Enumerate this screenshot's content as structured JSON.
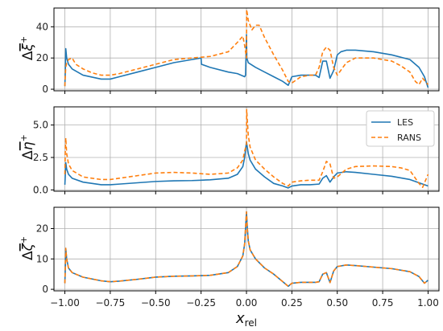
{
  "chart_data": [
    {
      "type": "line",
      "ylabel": "Δξ̅⁺",
      "xlim": [
        -1.06,
        1.06
      ],
      "ylim": [
        -1,
        52
      ],
      "yticks": [
        0,
        20,
        40
      ],
      "grid": true,
      "series": [
        {
          "name": "LES",
          "color": "#1f77b4",
          "dash": "solid",
          "x": [
            -1.0,
            -0.998,
            -0.995,
            -0.99,
            -0.98,
            -0.96,
            -0.9,
            -0.8,
            -0.75,
            -0.7,
            -0.6,
            -0.5,
            -0.4,
            -0.3,
            -0.25,
            -0.248,
            -0.2,
            -0.1,
            -0.05,
            -0.01,
            -0.005,
            0.0,
            0.002,
            0.01,
            0.05,
            0.1,
            0.15,
            0.2,
            0.23,
            0.25,
            0.3,
            0.35,
            0.38,
            0.4,
            0.42,
            0.44,
            0.46,
            0.48,
            0.5,
            0.52,
            0.55,
            0.6,
            0.7,
            0.8,
            0.9,
            0.95,
            0.98,
            1.0
          ],
          "y": [
            2,
            10,
            26,
            20,
            16,
            13,
            9,
            6.5,
            6.5,
            8,
            11,
            14,
            17,
            19,
            20,
            16,
            14,
            11,
            10,
            8,
            9,
            35,
            20,
            17,
            14,
            11,
            8,
            5,
            2.5,
            8,
            9,
            9,
            9,
            7.5,
            18,
            18,
            7,
            12,
            22,
            24,
            25,
            25,
            24,
            22,
            19,
            14,
            8,
            1
          ]
        },
        {
          "name": "RANS",
          "color": "#ff7f0e",
          "dash": "dashed",
          "x": [
            -1.0,
            -0.998,
            -0.995,
            -0.99,
            -0.98,
            -0.96,
            -0.94,
            -0.9,
            -0.85,
            -0.8,
            -0.75,
            -0.7,
            -0.6,
            -0.5,
            -0.4,
            -0.3,
            -0.2,
            -0.1,
            -0.05,
            -0.02,
            -0.01,
            0.0,
            0.001,
            0.005,
            0.01,
            0.03,
            0.05,
            0.07,
            0.1,
            0.15,
            0.2,
            0.23,
            0.25,
            0.3,
            0.35,
            0.38,
            0.4,
            0.42,
            0.44,
            0.46,
            0.48,
            0.5,
            0.55,
            0.6,
            0.7,
            0.8,
            0.85,
            0.9,
            0.93,
            0.95,
            0.97,
            1.0
          ],
          "y": [
            2,
            8,
            14,
            17,
            19,
            20,
            16,
            13,
            10.5,
            9,
            9,
            10,
            13,
            16,
            19,
            20,
            21,
            24,
            30,
            34,
            28,
            20,
            51,
            48,
            44,
            38,
            41,
            41,
            33,
            22,
            12,
            5,
            4,
            8,
            9,
            9,
            14,
            24,
            27,
            25,
            14,
            9,
            17,
            20,
            20,
            18,
            15,
            11,
            5,
            3,
            7,
            3
          ]
        }
      ]
    },
    {
      "type": "line",
      "ylabel": "Δη̅⁺",
      "xlim": [
        -1.06,
        1.06
      ],
      "ylim": [
        -0.1,
        6.4
      ],
      "yticks": [
        0.0,
        2.5,
        5.0
      ],
      "ytick_labels": [
        "0.0",
        "2.5",
        "5.0"
      ],
      "grid": true,
      "legend": {
        "placement": "top-right",
        "entries": [
          "LES",
          "RANS"
        ]
      },
      "series": [
        {
          "name": "LES",
          "color": "#1f77b4",
          "dash": "solid",
          "x": [
            -1.0,
            -0.998,
            -0.995,
            -0.99,
            -0.98,
            -0.96,
            -0.9,
            -0.8,
            -0.75,
            -0.7,
            -0.6,
            -0.5,
            -0.4,
            -0.3,
            -0.25,
            -0.2,
            -0.1,
            -0.05,
            -0.02,
            -0.01,
            0.0,
            0.01,
            0.02,
            0.05,
            0.1,
            0.15,
            0.2,
            0.23,
            0.25,
            0.3,
            0.35,
            0.4,
            0.42,
            0.44,
            0.46,
            0.48,
            0.5,
            0.55,
            0.6,
            0.7,
            0.8,
            0.9,
            0.95,
            1.0
          ],
          "y": [
            0.4,
            1.0,
            2.1,
            1.6,
            1.2,
            0.9,
            0.6,
            0.4,
            0.4,
            0.45,
            0.55,
            0.65,
            0.7,
            0.72,
            0.75,
            0.78,
            0.9,
            1.2,
            1.8,
            2.5,
            3.7,
            2.8,
            2.3,
            1.6,
            1.0,
            0.5,
            0.3,
            0.15,
            0.3,
            0.4,
            0.4,
            0.45,
            0.9,
            1.1,
            0.6,
            1.0,
            1.3,
            1.4,
            1.35,
            1.2,
            1.05,
            0.8,
            0.55,
            0.3
          ]
        },
        {
          "name": "RANS",
          "color": "#ff7f0e",
          "dash": "dashed",
          "x": [
            -1.0,
            -0.998,
            -0.995,
            -0.99,
            -0.98,
            -0.96,
            -0.9,
            -0.8,
            -0.75,
            -0.7,
            -0.6,
            -0.5,
            -0.4,
            -0.3,
            -0.25,
            -0.2,
            -0.1,
            -0.05,
            -0.02,
            -0.01,
            0.0,
            0.001,
            0.01,
            0.02,
            0.05,
            0.1,
            0.15,
            0.2,
            0.23,
            0.25,
            0.3,
            0.35,
            0.4,
            0.42,
            0.44,
            0.46,
            0.48,
            0.5,
            0.55,
            0.6,
            0.7,
            0.8,
            0.85,
            0.9,
            0.95,
            0.97,
            1.0
          ],
          "y": [
            1.2,
            2.8,
            4.0,
            2.8,
            2.0,
            1.5,
            1.0,
            0.8,
            0.8,
            0.9,
            1.1,
            1.3,
            1.35,
            1.3,
            1.25,
            1.2,
            1.3,
            1.7,
            2.3,
            3.0,
            3.5,
            6.2,
            4.2,
            3.3,
            2.3,
            1.6,
            1.0,
            0.5,
            0.3,
            0.6,
            0.7,
            0.75,
            0.75,
            1.4,
            2.2,
            2.0,
            0.9,
            1.0,
            1.6,
            1.8,
            1.85,
            1.8,
            1.7,
            1.5,
            0.5,
            0.2,
            1.2
          ]
        }
      ]
    },
    {
      "type": "line",
      "ylabel": "Δζ̅⁺",
      "xlabel": "x_rel",
      "xlim": [
        -1.06,
        1.06
      ],
      "ylim": [
        -0.5,
        27
      ],
      "yticks": [
        0,
        10,
        20
      ],
      "xticks": [
        -1.0,
        -0.75,
        -0.5,
        -0.25,
        0.0,
        0.25,
        0.5,
        0.75,
        1.0
      ],
      "xtick_labels": [
        "−1.00",
        "−0.75",
        "−0.50",
        "−0.25",
        "0.00",
        "0.25",
        "0.50",
        "0.75",
        "1.00"
      ],
      "grid": true,
      "series": [
        {
          "name": "LES",
          "color": "#1f77b4",
          "dash": "solid",
          "x": [
            -1.0,
            -0.998,
            -0.995,
            -0.99,
            -0.98,
            -0.96,
            -0.9,
            -0.8,
            -0.75,
            -0.7,
            -0.6,
            -0.5,
            -0.4,
            -0.3,
            -0.25,
            -0.2,
            -0.1,
            -0.05,
            -0.02,
            -0.01,
            0.0,
            0.005,
            0.01,
            0.02,
            0.05,
            0.1,
            0.15,
            0.2,
            0.23,
            0.25,
            0.3,
            0.35,
            0.38,
            0.4,
            0.42,
            0.44,
            0.46,
            0.48,
            0.5,
            0.55,
            0.6,
            0.7,
            0.8,
            0.9,
            0.95,
            0.98,
            1.0
          ],
          "y": [
            2,
            6,
            13.5,
            10,
            7,
            5.5,
            4,
            2.8,
            2.5,
            2.7,
            3.3,
            4,
            4.3,
            4.4,
            4.5,
            4.6,
            5.5,
            7.5,
            11,
            15,
            25.5,
            20,
            16,
            13,
            10,
            7,
            5,
            2.5,
            1,
            2,
            2.3,
            2.3,
            2.3,
            2.5,
            5,
            5.5,
            2.2,
            6,
            7.5,
            8,
            7.8,
            7.3,
            6.8,
            5.8,
            4.2,
            2,
            3
          ]
        },
        {
          "name": "RANS",
          "color": "#ff7f0e",
          "dash": "dashed",
          "x": [
            -1.0,
            -0.998,
            -0.995,
            -0.99,
            -0.98,
            -0.96,
            -0.9,
            -0.8,
            -0.75,
            -0.7,
            -0.6,
            -0.5,
            -0.4,
            -0.3,
            -0.25,
            -0.2,
            -0.1,
            -0.05,
            -0.02,
            -0.01,
            0.0,
            0.005,
            0.01,
            0.02,
            0.05,
            0.1,
            0.15,
            0.2,
            0.23,
            0.25,
            0.3,
            0.35,
            0.38,
            0.4,
            0.42,
            0.44,
            0.46,
            0.48,
            0.5,
            0.55,
            0.6,
            0.7,
            0.8,
            0.9,
            0.95,
            0.98,
            1.0
          ],
          "y": [
            2,
            6,
            13.5,
            10,
            7,
            5.5,
            4,
            2.8,
            2.5,
            2.7,
            3.3,
            4,
            4.3,
            4.4,
            4.5,
            4.6,
            5.5,
            7.5,
            11,
            15,
            25.5,
            20,
            16,
            13,
            10,
            7,
            5,
            2.5,
            1,
            2,
            2.3,
            2.3,
            2.3,
            2.5,
            5,
            5.5,
            2.2,
            6,
            7.5,
            8,
            7.8,
            7.3,
            6.8,
            5.8,
            4.2,
            2,
            3
          ]
        }
      ]
    }
  ],
  "figure": {
    "xlabel_main": "x",
    "xlabel_sub": "rel",
    "panel_ylabels": [
      {
        "main": "Δ",
        "symbol": "ξ",
        "sup": "+"
      },
      {
        "main": "Δ",
        "symbol": "η",
        "sup": "+"
      },
      {
        "main": "Δ",
        "symbol": "ζ",
        "sup": "+"
      }
    ]
  }
}
